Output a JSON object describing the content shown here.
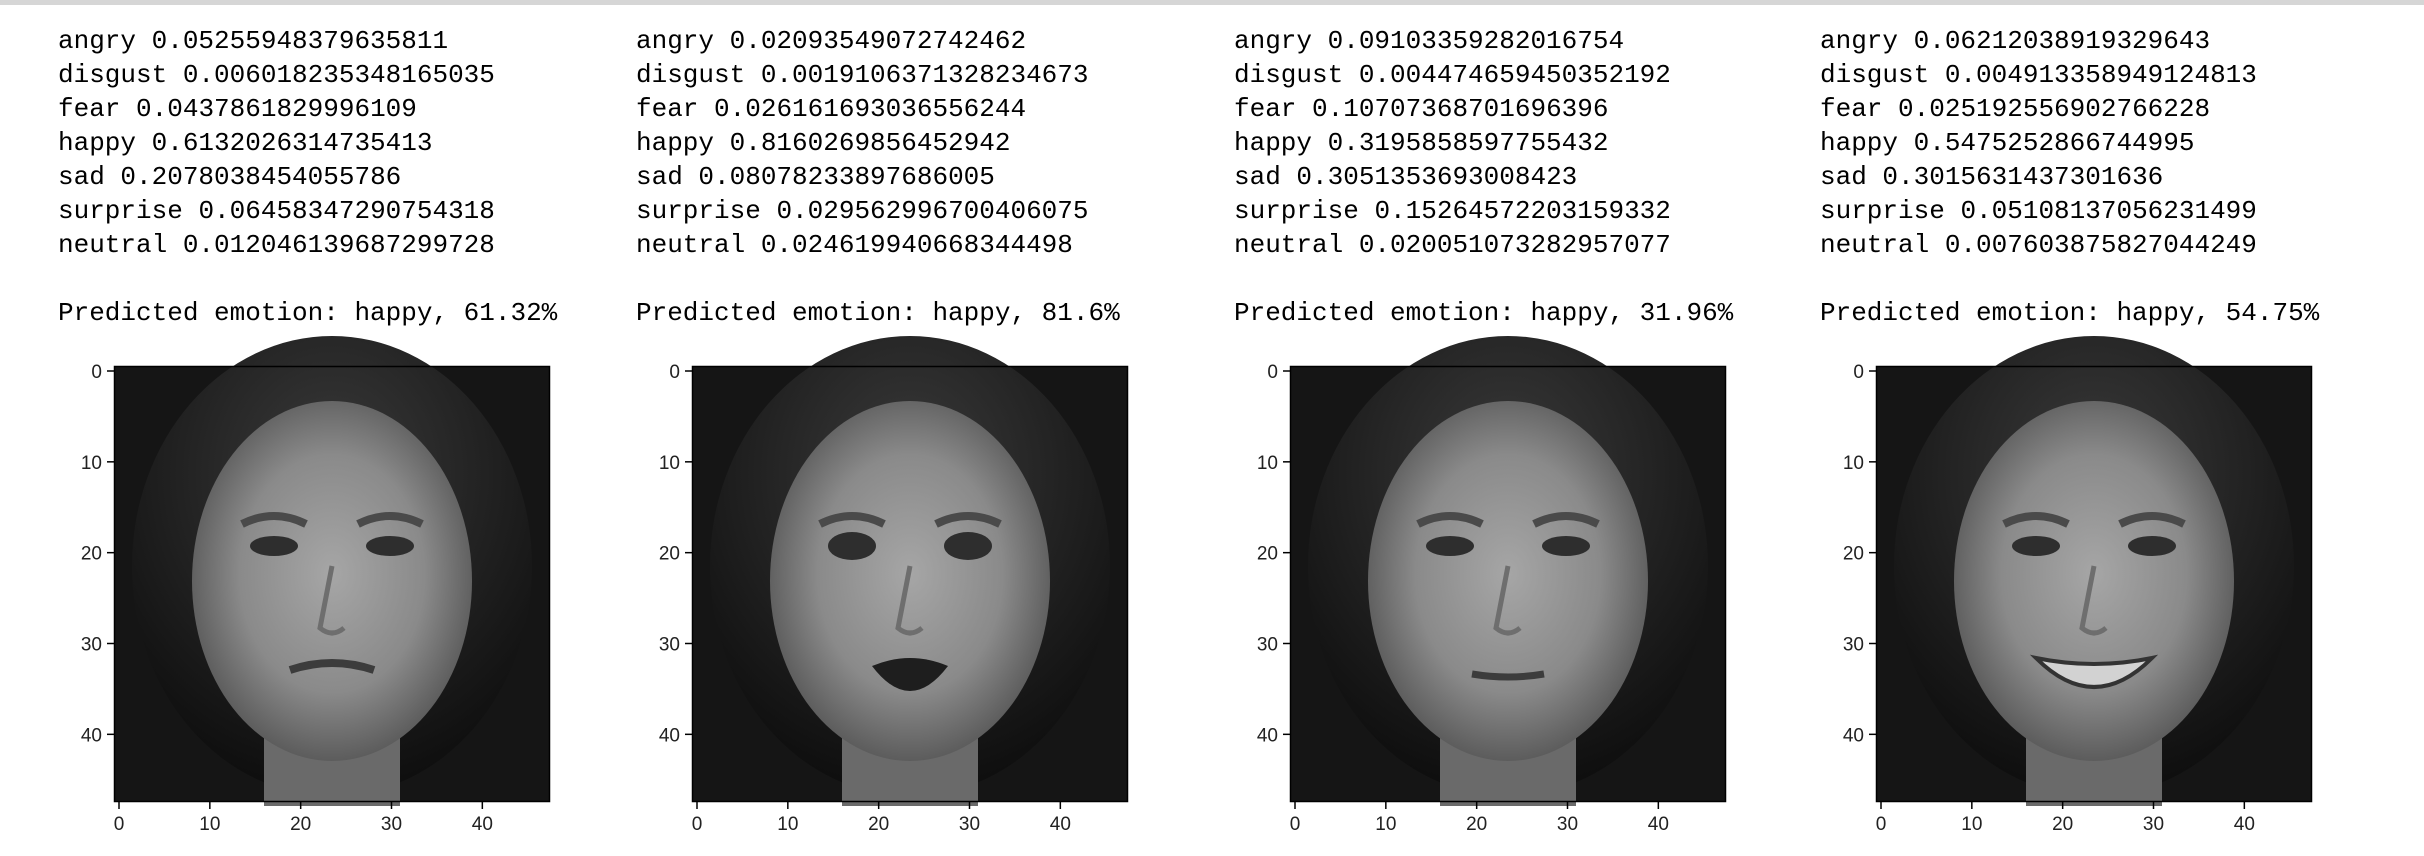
{
  "panels": [
    {
      "scores": [
        {
          "label": "angry",
          "value": "0.05255948379635811"
        },
        {
          "label": "disgust",
          "value": "0.006018235348165035"
        },
        {
          "label": "fear",
          "value": "0.0437861829996109"
        },
        {
          "label": "happy",
          "value": "0.6132026314735413"
        },
        {
          "label": "sad",
          "value": "0.2078038454055786"
        },
        {
          "label": "surprise",
          "value": "0.06458347290754318"
        },
        {
          "label": "neutral",
          "value": "0.012046139687299728"
        }
      ],
      "prediction": "Predicted emotion: happy, 61.32%",
      "expression": "disgust"
    },
    {
      "scores": [
        {
          "label": "angry",
          "value": "0.02093549072742462"
        },
        {
          "label": "disgust",
          "value": "0.0019106371328234673"
        },
        {
          "label": "fear",
          "value": "0.026161693036556244"
        },
        {
          "label": "happy",
          "value": "0.8160269856452942"
        },
        {
          "label": "sad",
          "value": "0.08078233897686005"
        },
        {
          "label": "surprise",
          "value": "0.029562996700406075"
        },
        {
          "label": "neutral",
          "value": "0.024619940668344498"
        }
      ],
      "prediction": "Predicted emotion: happy, 81.6%",
      "expression": "surprise"
    },
    {
      "scores": [
        {
          "label": "angry",
          "value": "0.09103359282016754"
        },
        {
          "label": "disgust",
          "value": "0.004474659450352192"
        },
        {
          "label": "fear",
          "value": "0.10707368701696396"
        },
        {
          "label": "happy",
          "value": "0.3195858597755432"
        },
        {
          "label": "sad",
          "value": "0.3051353693008423"
        },
        {
          "label": "surprise",
          "value": "0.15264572203159332"
        },
        {
          "label": "neutral",
          "value": "0.020051073282957077"
        }
      ],
      "prediction": "Predicted emotion: happy, 31.96%",
      "expression": "neutral"
    },
    {
      "scores": [
        {
          "label": "angry",
          "value": "0.06212038919329643"
        },
        {
          "label": "disgust",
          "value": "0.004913358949124813"
        },
        {
          "label": "fear",
          "value": "0.025192556902766228"
        },
        {
          "label": "happy",
          "value": "0.5475252866744995"
        },
        {
          "label": "sad",
          "value": "0.3015631437301636"
        },
        {
          "label": "surprise",
          "value": "0.05108137056231499"
        },
        {
          "label": "neutral",
          "value": "0.007603875827044249"
        }
      ],
      "prediction": "Predicted emotion: happy, 54.75%",
      "expression": "smile"
    }
  ],
  "axis": {
    "y_ticks": [
      "0",
      "10",
      "20",
      "30",
      "40"
    ],
    "x_ticks": [
      "0",
      "10",
      "20",
      "30",
      "40"
    ]
  }
}
